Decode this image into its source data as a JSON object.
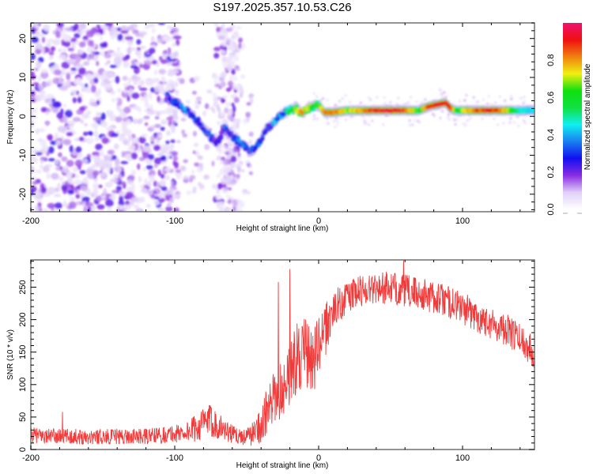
{
  "title": "S197.2025.357.10.53.C26",
  "chart_data": [
    {
      "type": "heatmap",
      "panel": "top",
      "xlabel": "Height of straight line (km)",
      "ylabel": "Frequency (Hz)",
      "xlim": [
        -200,
        150
      ],
      "ylim": [
        -24.5,
        24
      ],
      "xticks": [
        -200,
        -100,
        0,
        100
      ],
      "yticks": [
        -20,
        -10,
        0,
        10,
        20
      ],
      "colorbar": {
        "label": "Normalized spectral amplitude",
        "range": [
          0,
          1
        ],
        "ticks": [
          "0.0",
          "0.2",
          "0.4",
          "0.6",
          "0.8"
        ],
        "colormap": [
          "#ffffff",
          "#e0d0f8",
          "#8a2be2",
          "#1010f0",
          "#1a7ff0",
          "#10f0f0",
          "#10e040",
          "#10e010",
          "#f0f010",
          "#f08010",
          "#f01010",
          "#f01070"
        ]
      },
      "ridge": {
        "description": "Dominant spectral ridge frequency vs height",
        "x": [
          -105,
          -98,
          -90,
          -82,
          -76,
          -70,
          -66,
          -60,
          -54,
          -48,
          -44,
          -40,
          -36,
          -32,
          -28,
          -24,
          -20,
          -16,
          -12,
          -8,
          -4,
          0,
          4,
          10,
          20,
          30,
          40,
          50,
          60,
          70,
          76,
          82,
          88,
          92,
          96,
          100,
          110,
          120,
          130,
          140,
          150
        ],
        "freq": [
          5,
          3,
          1,
          -2,
          -5,
          -7,
          -3,
          -5,
          -7,
          -9,
          -8,
          -6,
          -3,
          -2,
          0,
          1,
          1.5,
          2,
          1,
          2,
          2.5,
          3,
          1,
          1,
          1.5,
          1.5,
          1.5,
          1.5,
          1.5,
          1.5,
          2.5,
          3,
          3.5,
          2,
          1.5,
          1.5,
          1.5,
          1.5,
          1.5,
          1.5,
          1.5
        ],
        "amplitude": [
          0.25,
          0.35,
          0.35,
          0.3,
          0.3,
          0.2,
          0.3,
          0.3,
          0.35,
          0.3,
          0.3,
          0.35,
          0.3,
          0.35,
          0.45,
          0.5,
          0.55,
          0.7,
          0.8,
          0.75,
          0.6,
          0.65,
          0.85,
          0.9,
          0.7,
          0.8,
          0.95,
          0.95,
          0.9,
          0.6,
          0.95,
          0.95,
          0.95,
          0.85,
          0.6,
          0.7,
          0.9,
          0.95,
          0.8,
          0.5,
          0.45
        ]
      },
      "noise_region": {
        "description": "Diffuse low-amplitude speckle (0.0–0.25) across all frequencies",
        "x_range": [
          -200,
          -105
        ],
        "secondary_band_x_range": [
          -70,
          -55
        ]
      }
    },
    {
      "type": "line",
      "panel": "bottom",
      "xlabel": "Height of straight line (km)",
      "ylabel": "SNR (10 * v/v)",
      "xlim": [
        -200,
        150
      ],
      "ylim": [
        0,
        292
      ],
      "xticks": [
        -200,
        -100,
        0,
        100
      ],
      "yticks": [
        0,
        50,
        100,
        150,
        200,
        250
      ],
      "color": "#f03030",
      "series": [
        {
          "name": "SNR envelope (mean)",
          "x": [
            -200,
            -180,
            -160,
            -140,
            -120,
            -100,
            -90,
            -80,
            -75,
            -70,
            -65,
            -60,
            -55,
            -50,
            -45,
            -40,
            -35,
            -30,
            -25,
            -20,
            -15,
            -10,
            -5,
            0,
            5,
            10,
            20,
            30,
            40,
            50,
            60,
            70,
            80,
            90,
            100,
            110,
            120,
            130,
            140,
            150
          ],
          "y": [
            22,
            20,
            20,
            20,
            20,
            24,
            28,
            40,
            45,
            38,
            30,
            24,
            20,
            20,
            25,
            40,
            60,
            80,
            95,
            120,
            140,
            150,
            135,
            155,
            185,
            215,
            235,
            245,
            250,
            248,
            245,
            240,
            235,
            228,
            218,
            205,
            195,
            185,
            170,
            150
          ],
          "spread": [
            12,
            12,
            12,
            12,
            12,
            14,
            18,
            25,
            25,
            22,
            18,
            14,
            12,
            14,
            20,
            30,
            40,
            45,
            45,
            50,
            55,
            55,
            55,
            50,
            40,
            30,
            25,
            25,
            25,
            25,
            25,
            25,
            25,
            25,
            25,
            25,
            25,
            25,
            25,
            25
          ]
        }
      ],
      "peaks": [
        {
          "x": -20,
          "y": 278
        },
        {
          "x": -28,
          "y": 258
        },
        {
          "x": 59,
          "y": 292
        },
        {
          "x": -178,
          "y": 58
        }
      ]
    }
  ]
}
